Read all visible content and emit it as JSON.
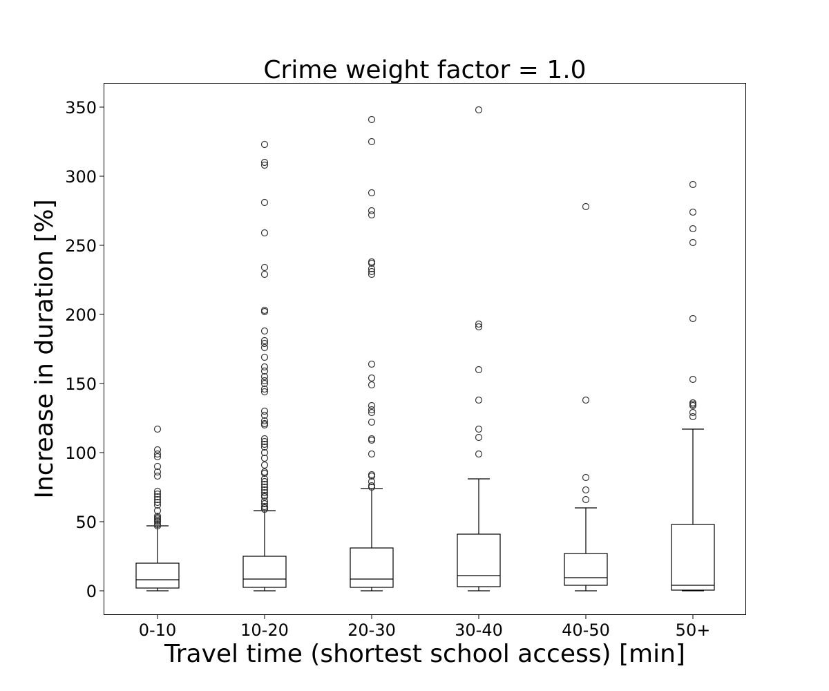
{
  "chart_data": {
    "type": "box",
    "title": "Crime weight factor = 1.0",
    "xlabel": "Travel time (shortest school access) [min]",
    "ylabel": "Increase in duration [%]",
    "ylim": [
      -17.5,
      367.5
    ],
    "yticks": [
      0,
      50,
      100,
      150,
      200,
      250,
      300,
      350
    ],
    "grid": false,
    "categories": [
      "0-10",
      "10-20",
      "20-30",
      "30-40",
      "40-50",
      "50+"
    ],
    "boxes": [
      {
        "category": "0-10",
        "whisker_low": 0,
        "q1": 2,
        "median": 8,
        "q3": 20,
        "whisker_high": 47,
        "outliers": [
          117,
          102,
          99,
          97,
          90,
          86,
          83,
          72,
          70,
          68,
          66,
          64,
          62,
          58,
          54,
          53,
          52,
          51,
          50,
          48,
          47
        ]
      },
      {
        "category": "10-20",
        "whisker_low": 0,
        "q1": 2.5,
        "median": 8.5,
        "q3": 25,
        "whisker_high": 58,
        "outliers": [
          323,
          310,
          308,
          281,
          259,
          234,
          229,
          203,
          202,
          188,
          181,
          179,
          176,
          169,
          162,
          159,
          155,
          152,
          150,
          146,
          144,
          130,
          127,
          123,
          121,
          120,
          110,
          108,
          106,
          104,
          100,
          96,
          91,
          86,
          85,
          81,
          79,
          77,
          75,
          73,
          71,
          69,
          68,
          65,
          63,
          61,
          60,
          59
        ]
      },
      {
        "category": "20-30",
        "whisker_low": 0,
        "q1": 2.5,
        "median": 8.5,
        "q3": 31,
        "whisker_high": 74,
        "outliers": [
          341,
          325,
          288,
          275,
          272,
          238,
          237,
          233,
          231,
          229,
          164,
          154,
          149,
          134,
          131,
          129,
          122,
          110,
          109,
          99,
          84,
          83,
          79,
          76,
          75
        ]
      },
      {
        "category": "30-40",
        "whisker_low": 0,
        "q1": 3,
        "median": 11,
        "q3": 41,
        "whisker_high": 81,
        "outliers": [
          348,
          193,
          191,
          160,
          138,
          117,
          111,
          99
        ]
      },
      {
        "category": "40-50",
        "whisker_low": 0,
        "q1": 4,
        "median": 9.5,
        "q3": 27,
        "whisker_high": 60,
        "outliers": [
          278,
          138,
          82,
          73,
          66
        ]
      },
      {
        "category": "50+",
        "whisker_low": 0,
        "q1": 0.5,
        "median": 4,
        "q3": 48,
        "whisker_high": 117,
        "outliers": [
          294,
          274,
          262,
          252,
          197,
          153,
          136,
          135,
          134,
          129,
          126
        ]
      }
    ]
  }
}
